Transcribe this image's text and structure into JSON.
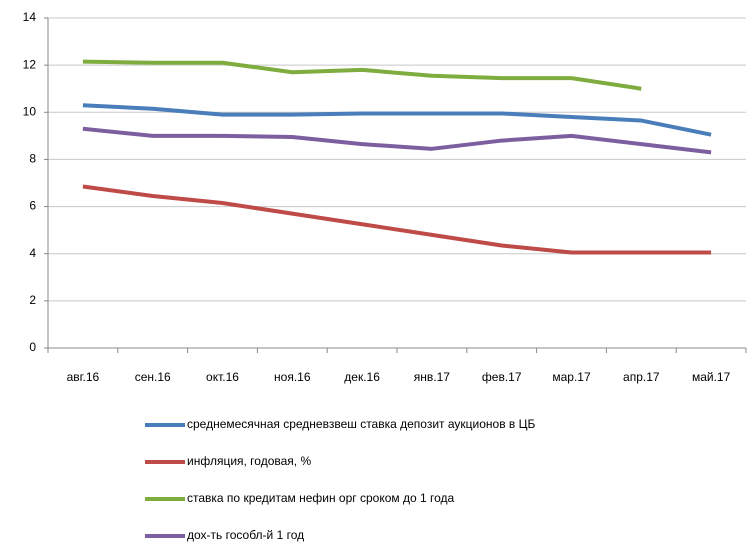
{
  "chart_data": {
    "type": "line",
    "categories": [
      "авг.16",
      "сен.16",
      "окт.16",
      "ноя.16",
      "дек.16",
      "янв.17",
      "фев.17",
      "мар.17",
      "апр.17",
      "май.17"
    ],
    "series": [
      {
        "name": "среднемесячная средневзвеш ставка депозит аукционов в ЦБ",
        "color": "#4a7ebb",
        "values": [
          10.3,
          10.15,
          9.9,
          9.9,
          9.95,
          9.95,
          9.95,
          9.8,
          9.65,
          9.05
        ]
      },
      {
        "name": "инфляция, годовая, %",
        "color": "#be4b48",
        "values": [
          6.85,
          6.45,
          6.15,
          5.7,
          5.25,
          4.8,
          4.35,
          4.05,
          4.05,
          4.05
        ]
      },
      {
        "name": "ставка по кредитам нефин орг сроком до 1 года",
        "color": "#7eac3f",
        "values": [
          12.15,
          12.1,
          12.1,
          11.7,
          11.8,
          11.55,
          11.45,
          11.45,
          11.0,
          null
        ]
      },
      {
        "name": "дох-ть гособл-й 1 год",
        "color": "#7d5fa0",
        "values": [
          9.3,
          9.0,
          9.0,
          8.95,
          8.65,
          8.45,
          8.8,
          9.0,
          8.65,
          8.3
        ]
      }
    ],
    "ylim": [
      0,
      14
    ],
    "yticks": [
      0,
      2,
      4,
      6,
      8,
      10,
      12,
      14
    ],
    "grid": true,
    "legend": "bottom"
  }
}
